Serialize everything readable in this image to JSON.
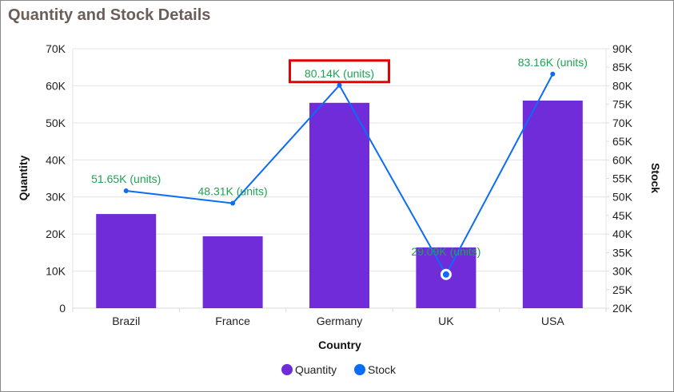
{
  "chart_data": {
    "type": "bar+line",
    "title": "Quantity and Stock Details",
    "xlabel": "Country",
    "ylabel": "Quantity",
    "y2label": "Stock",
    "categories": [
      "Brazil",
      "France",
      "Germany",
      "UK",
      "USA"
    ],
    "ylim": [
      0,
      70000
    ],
    "y2lim": [
      20000,
      90000
    ],
    "yticks": [
      "0",
      "10K",
      "20K",
      "30K",
      "40K",
      "50K",
      "60K",
      "70K"
    ],
    "y2ticks": [
      "20K",
      "25K",
      "30K",
      "35K",
      "40K",
      "45K",
      "50K",
      "55K",
      "60K",
      "65K",
      "70K",
      "75K",
      "80K",
      "85K",
      "90K"
    ],
    "grid": true,
    "legend_position": "bottom",
    "series": [
      {
        "name": "Quantity",
        "type": "bar",
        "axis": "left",
        "color": "#6f2cd8",
        "values": [
          25400,
          19400,
          55400,
          16400,
          56000
        ]
      },
      {
        "name": "Stock",
        "type": "line",
        "axis": "right",
        "color": "#0b6cf7",
        "values": [
          51650,
          48310,
          80140,
          29090,
          83160
        ],
        "labels": [
          "51.65K (units)",
          "48.31K (units)",
          "80.14K (units)",
          "29.09K (units)",
          "83.16K (units)"
        ]
      }
    ],
    "label_color": "#1fa352",
    "highlighted_label_index": 2,
    "highlight_color": "#e60000",
    "selected_point_index": 3
  }
}
